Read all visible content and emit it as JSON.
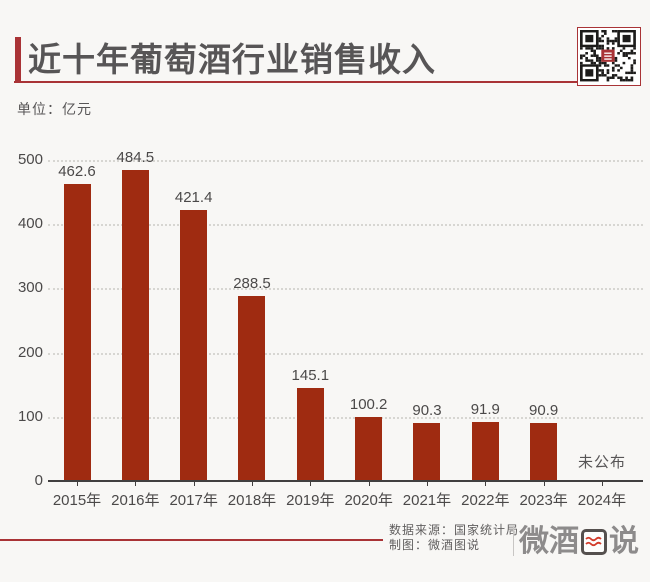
{
  "header": {
    "title": "近十年葡萄酒行业销售收入"
  },
  "unit_label": "单位：亿元",
  "chart_data": {
    "type": "bar",
    "title": "近十年葡萄酒行业销售收入",
    "unit": "亿元",
    "categories": [
      "2015年",
      "2016年",
      "2017年",
      "2018年",
      "2019年",
      "2020年",
      "2021年",
      "2022年",
      "2023年",
      "2024年"
    ],
    "values": [
      462.6,
      484.5,
      421.4,
      288.5,
      145.1,
      100.2,
      90.3,
      91.9,
      90.9,
      null
    ],
    "missing_label": "未公布",
    "ylim": [
      0,
      500
    ],
    "ytick_step": 100,
    "grid": true,
    "grid_style": "dotted",
    "legend": "none"
  },
  "footer": {
    "source_line": "数据来源：国家统计局",
    "credit_line": "制图：微酒图说",
    "logo_text": "微酒图说"
  },
  "colors": {
    "accent_red": "#a93336",
    "bar_red": "#9f2b11",
    "title_text": "#575556",
    "chart_text": "#4b4949",
    "muted_text": "#605e5e",
    "logo_gray": "#8d8b8b",
    "background": "#f8f7f5",
    "qr_dark": "#1c1b1a",
    "wave_red": "#d23b2a"
  }
}
